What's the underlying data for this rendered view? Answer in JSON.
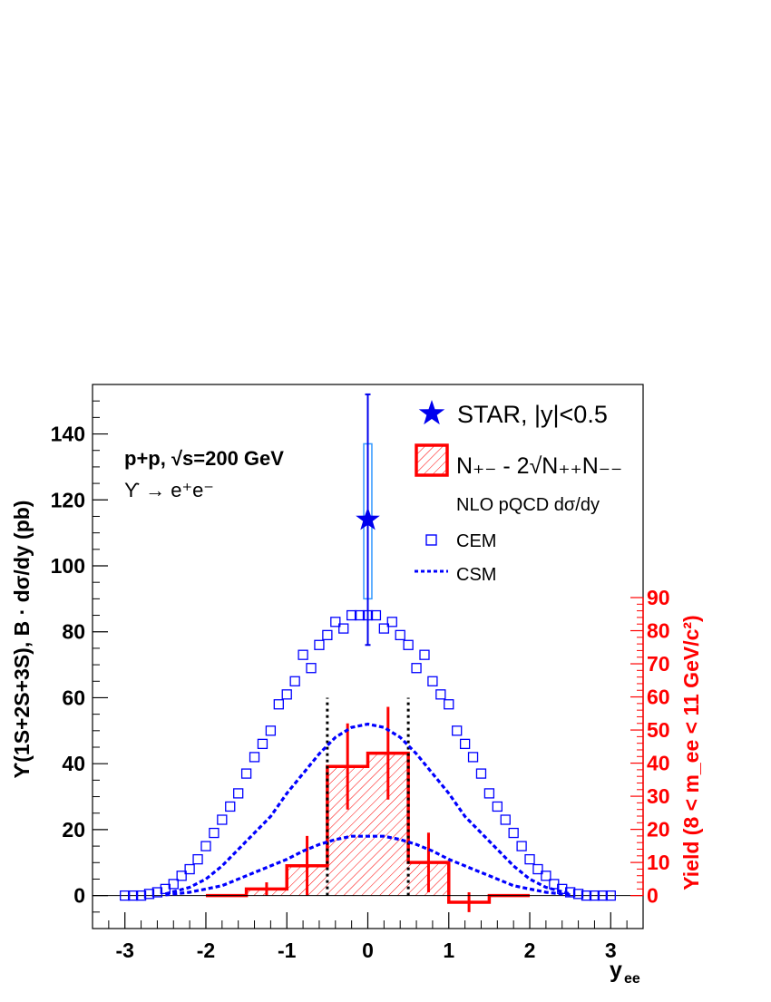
{
  "chart_data": {
    "type": "scatter",
    "x_axis": {
      "label_main": "y",
      "label_sub": "ee",
      "range": [
        -3.4,
        3.4
      ],
      "ticks": [
        -3,
        -2,
        -1,
        0,
        1,
        2,
        3
      ],
      "tick_labels": [
        "-3",
        "-2",
        "-1",
        "0",
        "1",
        "2",
        "3"
      ]
    },
    "y_axis_left": {
      "label": "ϒ(1S+2S+3S), B · dσ/dy (pb)",
      "range": [
        -10,
        155
      ],
      "ticks": [
        0,
        20,
        40,
        60,
        80,
        100,
        120,
        140
      ],
      "tick_labels": [
        "0",
        "20",
        "40",
        "60",
        "80",
        "100",
        "120",
        "140"
      ]
    },
    "y_axis_right": {
      "label": "Yield (8 < m_ee < 11 GeV/c²)",
      "range": [
        0,
        90
      ],
      "ticks": [
        0,
        10,
        20,
        30,
        40,
        50,
        60,
        70,
        80,
        90
      ],
      "tick_labels": [
        "0",
        "10",
        "20",
        "30",
        "40",
        "50",
        "60",
        "70",
        "80",
        "90"
      ],
      "color": "#ff0000"
    },
    "annotations": {
      "system": "p+p, √s=200 GeV",
      "decay": "ϒ → e⁺e⁻"
    },
    "legend": {
      "placement": "top-right",
      "star": "STAR, |y|<0.5",
      "histogram": "N₊₋ - 2√N₊₊N₋₋",
      "nlo_header": "NLO pQCD dσ/dy",
      "cem": "CEM",
      "csm": "CSM"
    },
    "colors": {
      "star": "#0000ee",
      "star_syst": "#3399ff",
      "cem": "#0000ff",
      "csm": "#0000ff",
      "histogram": "#ff0000",
      "hatch": "#ff0000",
      "right_axis": "#ff0000"
    },
    "series": [
      {
        "name": "STAR, |y|<0.5",
        "kind": "point",
        "x": 0.0,
        "y": 114,
        "stat_err": [
          76,
          152
        ],
        "syst_err": [
          90,
          137
        ],
        "x_half_width": 0.05
      },
      {
        "name": "CEM",
        "kind": "open-squares",
        "x": [
          -3.0,
          -2.9,
          -2.8,
          -2.7,
          -2.6,
          -2.5,
          -2.4,
          -2.3,
          -2.2,
          -2.1,
          -2.0,
          -1.9,
          -1.8,
          -1.7,
          -1.6,
          -1.5,
          -1.4,
          -1.3,
          -1.2,
          -1.1,
          -1.0,
          -0.9,
          -0.8,
          -0.7,
          -0.6,
          -0.5,
          -0.4,
          -0.3,
          -0.2,
          -0.1,
          0.0,
          0.1,
          0.2,
          0.3,
          0.4,
          0.5,
          0.6,
          0.7,
          0.8,
          0.9,
          1.0,
          1.1,
          1.2,
          1.3,
          1.4,
          1.5,
          1.6,
          1.7,
          1.8,
          1.9,
          2.0,
          2.1,
          2.2,
          2.3,
          2.4,
          2.5,
          2.6,
          2.7,
          2.8,
          2.9,
          3.0
        ],
        "y": [
          0,
          0,
          0,
          0.5,
          1,
          2,
          3.5,
          6,
          8,
          11,
          15,
          19,
          23,
          27,
          31,
          37,
          42,
          46,
          50,
          58,
          61,
          65,
          73,
          69,
          76,
          79,
          83,
          81,
          85,
          85,
          85,
          85,
          81,
          83,
          79,
          76,
          69,
          73,
          65,
          61,
          58,
          50,
          46,
          42,
          37,
          31,
          27,
          23,
          19,
          15,
          11,
          8,
          6,
          3.5,
          2,
          1,
          0.5,
          0,
          0,
          0,
          0
        ]
      },
      {
        "name": "CSM",
        "kind": "dashed-line",
        "curves": [
          {
            "x": [
              -2.5,
              -2.2,
              -2.0,
              -1.8,
              -1.6,
              -1.4,
              -1.2,
              -1.0,
              -0.8,
              -0.6,
              -0.4,
              -0.2,
              0.0,
              0.2,
              0.4,
              0.6,
              0.8,
              1.0,
              1.2,
              1.4,
              1.6,
              1.8,
              2.0,
              2.2,
              2.5
            ],
            "y": [
              0.5,
              2.5,
              5,
              9,
              14,
              19,
              24,
              31,
              37,
              43,
              48,
              51,
              52,
              51,
              48,
              43,
              37,
              31,
              24,
              19,
              14,
              9,
              5,
              2.5,
              0.5
            ]
          },
          {
            "x": [
              -2.5,
              -2.2,
              -2.0,
              -1.8,
              -1.6,
              -1.4,
              -1.2,
              -1.0,
              -0.8,
              -0.6,
              -0.4,
              -0.2,
              0.0,
              0.2,
              0.4,
              0.6,
              0.8,
              1.0,
              1.2,
              1.4,
              1.6,
              1.8,
              2.0,
              2.2,
              2.5
            ],
            "y": [
              0.2,
              1,
              2,
              3,
              5,
              7,
              9,
              11,
              13.5,
              15.5,
              17,
              18,
              18,
              18,
              17,
              15.5,
              13.5,
              11,
              9,
              7,
              5,
              3,
              2,
              1,
              0.2
            ]
          }
        ]
      },
      {
        "name": "N₊₋ - 2√N₊₊N₋₋",
        "kind": "histogram",
        "axis": "right",
        "bin_edges": [
          -2.0,
          -1.5,
          -1.0,
          -0.5,
          0.0,
          0.5,
          1.0,
          1.5,
          2.0
        ],
        "values": [
          0,
          2,
          9,
          39,
          43,
          10,
          -2,
          0
        ],
        "errors": [
          0,
          2,
          9,
          13,
          14,
          9,
          3,
          0
        ],
        "hatched_range": [
          -1.5,
          1.0
        ]
      }
    ],
    "reference_lines": {
      "x_values": [
        -0.5,
        0.5
      ],
      "y_top": 60,
      "color": "#000000",
      "style": "dotted"
    }
  }
}
